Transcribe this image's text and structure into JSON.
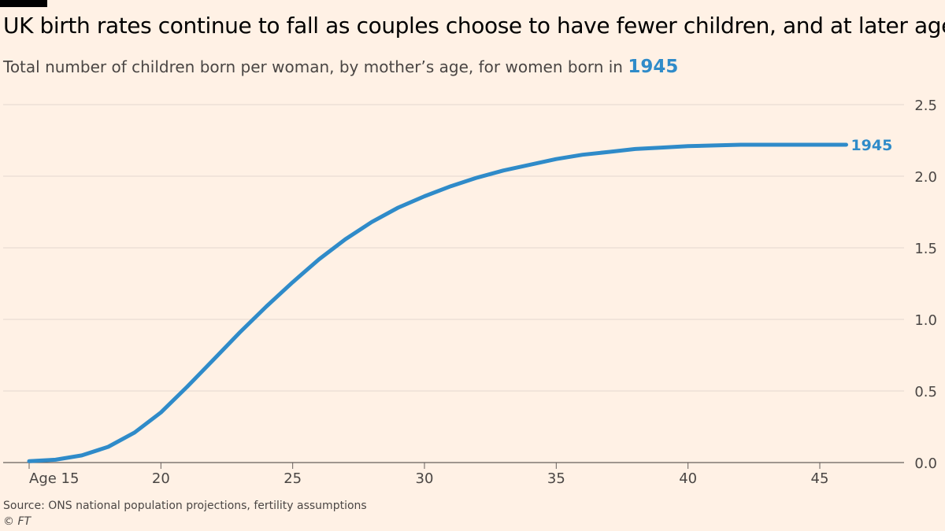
{
  "header": {
    "title": "UK birth rates continue to fall as couples choose to have fewer children, and at later ages",
    "subtitle_prefix": "Total number of children born per woman, by mother’s age, for women born in ",
    "subtitle_year": "1945"
  },
  "footer": {
    "source": "Source: ONS national population projections, fertility assumptions",
    "copyright": "© FT"
  },
  "colors": {
    "background": "#fff1e5",
    "series": "#2f8bc9",
    "grid": "#e3d8cf",
    "text": "#33302e"
  },
  "chart_data": {
    "type": "line",
    "title": "UK birth rates continue to fall as couples choose to have fewer children, and at later ages",
    "subtitle": "Total number of children born per woman, by mother’s age, for women born in 1945",
    "xlabel": "",
    "ylabel": "",
    "xlim": [
      14,
      47.5
    ],
    "ylim": [
      0,
      2.5
    ],
    "x_ticks": [
      15,
      20,
      25,
      30,
      35,
      40,
      45
    ],
    "x_tick_labels": [
      "Age 15",
      "20",
      "25",
      "30",
      "35",
      "40",
      "45"
    ],
    "y_ticks": [
      0,
      0.5,
      1,
      1.5,
      2,
      2.5
    ],
    "y_tick_labels": [
      "0.0",
      "0.5",
      "1.0",
      "1.5",
      "2.0",
      "2.5"
    ],
    "grid": true,
    "y_axis_side": "right",
    "series": [
      {
        "name": "1945",
        "color": "#2f8bc9",
        "x": [
          15,
          16,
          17,
          18,
          19,
          20,
          21,
          22,
          23,
          24,
          25,
          26,
          27,
          28,
          29,
          30,
          31,
          32,
          33,
          34,
          35,
          36,
          37,
          38,
          39,
          40,
          41,
          42,
          43,
          44,
          45,
          46
        ],
        "y": [
          0.01,
          0.02,
          0.05,
          0.11,
          0.21,
          0.35,
          0.53,
          0.72,
          0.91,
          1.09,
          1.26,
          1.42,
          1.56,
          1.68,
          1.78,
          1.86,
          1.93,
          1.99,
          2.04,
          2.08,
          2.12,
          2.15,
          2.17,
          2.19,
          2.2,
          2.21,
          2.215,
          2.22,
          2.22,
          2.22,
          2.22,
          2.22
        ]
      }
    ]
  }
}
